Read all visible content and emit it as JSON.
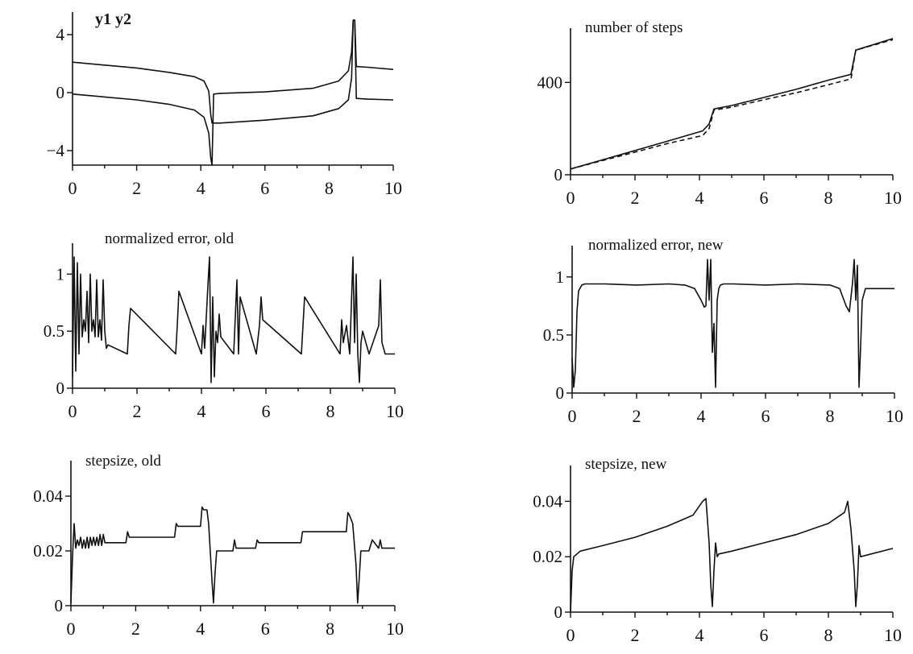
{
  "chart_data": [
    {
      "id": "p1",
      "type": "line",
      "title": "y1 y2",
      "xlim": [
        0,
        10
      ],
      "ylim": [
        -5,
        5
      ],
      "xticks": [
        0,
        2,
        4,
        6,
        8,
        10
      ],
      "xtick_labels": [
        "0",
        "2",
        "4",
        "6",
        "8",
        "10"
      ],
      "yticks": [
        4,
        0,
        -4
      ],
      "ytick_labels": [
        "4",
        "0",
        "−4"
      ],
      "series": [
        {
          "style": "solid",
          "x": [
            0,
            1,
            2,
            3,
            3.8,
            4.1,
            4.25,
            4.31,
            4.35,
            4.4,
            4.6,
            6,
            7.5,
            8.3,
            8.6,
            8.7,
            8.75,
            8.8,
            8.85,
            9.2,
            10
          ],
          "y": [
            -0.1,
            -0.3,
            -0.5,
            -0.8,
            -1.2,
            -1.7,
            -2.8,
            -4.5,
            -5,
            -0.1,
            -0.05,
            0.05,
            0.3,
            0.8,
            1.5,
            2.8,
            5,
            5,
            -0.4,
            -0.45,
            -0.5
          ]
        },
        {
          "style": "solid",
          "x": [
            0,
            1,
            2,
            3,
            3.8,
            4.1,
            4.25,
            4.31,
            4.35,
            4.4,
            4.6,
            6,
            7.5,
            8.3,
            8.6,
            8.7,
            8.75,
            8.8,
            8.85,
            9.2,
            10
          ],
          "y": [
            2.1,
            1.9,
            1.7,
            1.4,
            1.1,
            0.8,
            0.1,
            -1.5,
            -2.1,
            -2.1,
            -2.1,
            -1.9,
            -1.6,
            -1.1,
            -0.5,
            1.0,
            5,
            5,
            1.8,
            1.75,
            1.6
          ]
        }
      ]
    },
    {
      "id": "p2",
      "type": "line",
      "title": "number of steps",
      "xlim": [
        0,
        10
      ],
      "ylim": [
        0,
        600
      ],
      "xticks": [
        0,
        2,
        4,
        6,
        8,
        10
      ],
      "xtick_labels": [
        "0",
        "2",
        "4",
        "6",
        "8",
        "10"
      ],
      "yticks": [
        0,
        400
      ],
      "ytick_labels": [
        "0",
        "400"
      ],
      "series": [
        {
          "style": "solid",
          "x": [
            0,
            1,
            2,
            3,
            4.1,
            4.3,
            4.45,
            5,
            6,
            7,
            8,
            8.7,
            8.85,
            10
          ],
          "y": [
            25,
            65,
            105,
            145,
            190,
            220,
            285,
            300,
            335,
            370,
            410,
            435,
            540,
            590
          ]
        },
        {
          "style": "dashed",
          "x": [
            0,
            1,
            2,
            3,
            4.1,
            4.3,
            4.45,
            5,
            6,
            7,
            8,
            8.7,
            8.85,
            10
          ],
          "y": [
            25,
            62,
            98,
            135,
            170,
            200,
            280,
            293,
            325,
            355,
            390,
            415,
            540,
            585
          ]
        }
      ]
    },
    {
      "id": "p3",
      "type": "line",
      "title": "normalized error, old",
      "xlim": [
        0,
        10
      ],
      "ylim": [
        0,
        1.2
      ],
      "xticks": [
        0,
        2,
        4,
        6,
        8,
        10
      ],
      "xtick_labels": [
        "0",
        "2",
        "4",
        "6",
        "8",
        "10"
      ],
      "yticks": [
        0,
        0.5,
        1
      ],
      "ytick_labels": [
        "0",
        "0.5",
        "1"
      ],
      "series": [
        {
          "style": "solid",
          "x": [
            0,
            0.05,
            0.1,
            0.15,
            0.2,
            0.25,
            0.3,
            0.35,
            0.4,
            0.45,
            0.5,
            0.55,
            0.6,
            0.65,
            0.7,
            0.75,
            0.8,
            0.85,
            0.9,
            0.95,
            1.0,
            1.05,
            1.1,
            1.7,
            1.75,
            1.8,
            3.2,
            3.25,
            3.3,
            4.0,
            4.05,
            4.1,
            4.2,
            4.25,
            4.3,
            4.35,
            4.4,
            4.45,
            4.5,
            4.55,
            4.6,
            5.0,
            5.1,
            5.15,
            5.2,
            5.7,
            5.8,
            5.85,
            5.9,
            7.1,
            7.15,
            7.2,
            8.3,
            8.35,
            8.4,
            8.5,
            8.6,
            8.7,
            8.75,
            8.8,
            8.85,
            8.9,
            8.95,
            9.0,
            9.2,
            9.5,
            9.55,
            9.6,
            9.7,
            10
          ],
          "y": [
            0.1,
            1.15,
            0.15,
            1.1,
            0.3,
            1.0,
            0.45,
            0.6,
            0.5,
            0.85,
            0.4,
            1.0,
            0.5,
            0.6,
            0.45,
            0.95,
            0.45,
            0.6,
            0.42,
            0.95,
            0.5,
            0.35,
            0.38,
            0.3,
            0.55,
            0.7,
            0.3,
            0.55,
            0.85,
            0.3,
            0.55,
            0.35,
            0.9,
            1.15,
            0.05,
            0.8,
            0.1,
            0.5,
            0.4,
            0.65,
            0.45,
            0.3,
            0.95,
            0.3,
            0.8,
            0.3,
            0.55,
            0.8,
            0.6,
            0.3,
            0.55,
            0.8,
            0.3,
            0.6,
            0.4,
            0.55,
            0.3,
            1.15,
            0.4,
            1.0,
            0.3,
            0.05,
            0.4,
            0.5,
            0.3,
            0.55,
            0.95,
            0.4,
            0.3,
            0.3
          ]
        }
      ]
    },
    {
      "id": "p4",
      "type": "line",
      "title": "normalized error, new",
      "xlim": [
        0,
        10
      ],
      "ylim": [
        0,
        1.2
      ],
      "xticks": [
        0,
        2,
        4,
        6,
        8,
        10
      ],
      "xtick_labels": [
        "0",
        "2",
        "4",
        "6",
        "8",
        "10"
      ],
      "yticks": [
        0,
        0.5,
        1
      ],
      "ytick_labels": [
        "0",
        "0.5",
        "1"
      ],
      "series": [
        {
          "style": "solid",
          "x": [
            0,
            0.05,
            0.1,
            0.15,
            0.2,
            0.3,
            0.4,
            1,
            2,
            3,
            3.5,
            3.8,
            4.0,
            4.1,
            4.15,
            4.2,
            4.25,
            4.3,
            4.35,
            4.4,
            4.45,
            4.5,
            4.55,
            4.6,
            4.7,
            5,
            6,
            7,
            8,
            8.3,
            8.5,
            8.6,
            8.7,
            8.75,
            8.8,
            8.85,
            8.9,
            8.95,
            9.0,
            9.1,
            10
          ],
          "y": [
            0.3,
            0.05,
            0.2,
            0.7,
            0.88,
            0.93,
            0.94,
            0.94,
            0.93,
            0.94,
            0.93,
            0.9,
            0.8,
            0.74,
            0.75,
            1.15,
            0.8,
            1.15,
            0.35,
            0.6,
            0.05,
            0.8,
            0.9,
            0.93,
            0.94,
            0.94,
            0.93,
            0.94,
            0.93,
            0.9,
            0.75,
            0.7,
            0.95,
            1.15,
            0.8,
            1.1,
            0.05,
            0.4,
            0.8,
            0.9,
            0.9
          ]
        }
      ]
    },
    {
      "id": "p5",
      "type": "line",
      "title": "stepsize, old",
      "xlim": [
        0,
        10
      ],
      "ylim": [
        0,
        0.05
      ],
      "xticks": [
        0,
        2,
        4,
        6,
        8,
        10
      ],
      "xtick_labels": [
        "0",
        "2",
        "4",
        "6",
        "8",
        "10"
      ],
      "yticks": [
        0,
        0.02,
        0.04
      ],
      "ytick_labels": [
        "0",
        "0.02",
        "0.04"
      ],
      "series": [
        {
          "style": "solid",
          "x": [
            0,
            0.05,
            0.1,
            0.15,
            0.2,
            0.25,
            0.3,
            0.35,
            0.4,
            0.45,
            0.5,
            0.55,
            0.6,
            0.65,
            0.7,
            0.75,
            0.8,
            0.85,
            0.9,
            0.95,
            1.0,
            1.05,
            1.7,
            1.75,
            1.8,
            3.2,
            3.25,
            3.3,
            4.0,
            4.05,
            4.1,
            4.2,
            4.25,
            4.3,
            4.35,
            4.4,
            4.45,
            4.5,
            4.55,
            5.0,
            5.05,
            5.1,
            5.15,
            5.7,
            5.75,
            5.8,
            5.85,
            7.1,
            7.15,
            7.2,
            8.5,
            8.55,
            8.6,
            8.7,
            8.8,
            8.85,
            8.9,
            8.95,
            9.0,
            9.2,
            9.3,
            9.5,
            9.55,
            9.6,
            10
          ],
          "y": [
            0.001,
            0.018,
            0.03,
            0.021,
            0.024,
            0.022,
            0.025,
            0.021,
            0.024,
            0.021,
            0.025,
            0.021,
            0.025,
            0.022,
            0.025,
            0.022,
            0.025,
            0.022,
            0.026,
            0.022,
            0.026,
            0.023,
            0.023,
            0.027,
            0.025,
            0.025,
            0.03,
            0.029,
            0.029,
            0.036,
            0.035,
            0.035,
            0.03,
            0.02,
            0.01,
            0.001,
            0.012,
            0.02,
            0.02,
            0.02,
            0.024,
            0.021,
            0.021,
            0.021,
            0.024,
            0.023,
            0.023,
            0.023,
            0.027,
            0.027,
            0.027,
            0.034,
            0.033,
            0.03,
            0.015,
            0.001,
            0.01,
            0.02,
            0.02,
            0.02,
            0.024,
            0.021,
            0.024,
            0.021,
            0.021
          ]
        }
      ]
    },
    {
      "id": "p6",
      "type": "line",
      "title": "stepsize, new",
      "xlim": [
        0,
        10
      ],
      "ylim": [
        0,
        0.05
      ],
      "xticks": [
        0,
        2,
        4,
        6,
        8,
        10
      ],
      "xtick_labels": [
        "0",
        "2",
        "4",
        "6",
        "8",
        "10"
      ],
      "yticks": [
        0,
        0.02,
        0.04
      ],
      "ytick_labels": [
        "0",
        "0.02",
        "0.04"
      ],
      "series": [
        {
          "style": "solid",
          "x": [
            0,
            0.05,
            0.1,
            0.2,
            0.3,
            1,
            2,
            3,
            3.8,
            4.1,
            4.2,
            4.3,
            4.35,
            4.4,
            4.45,
            4.5,
            4.55,
            4.6,
            5,
            6,
            7,
            8,
            8.5,
            8.6,
            8.7,
            8.8,
            8.85,
            8.9,
            8.95,
            9.0,
            10
          ],
          "y": [
            0.0,
            0.015,
            0.02,
            0.021,
            0.022,
            0.024,
            0.027,
            0.031,
            0.035,
            0.04,
            0.041,
            0.025,
            0.01,
            0.002,
            0.015,
            0.025,
            0.02,
            0.021,
            0.022,
            0.025,
            0.028,
            0.032,
            0.036,
            0.04,
            0.03,
            0.015,
            0.002,
            0.01,
            0.024,
            0.02,
            0.023
          ]
        }
      ]
    }
  ]
}
